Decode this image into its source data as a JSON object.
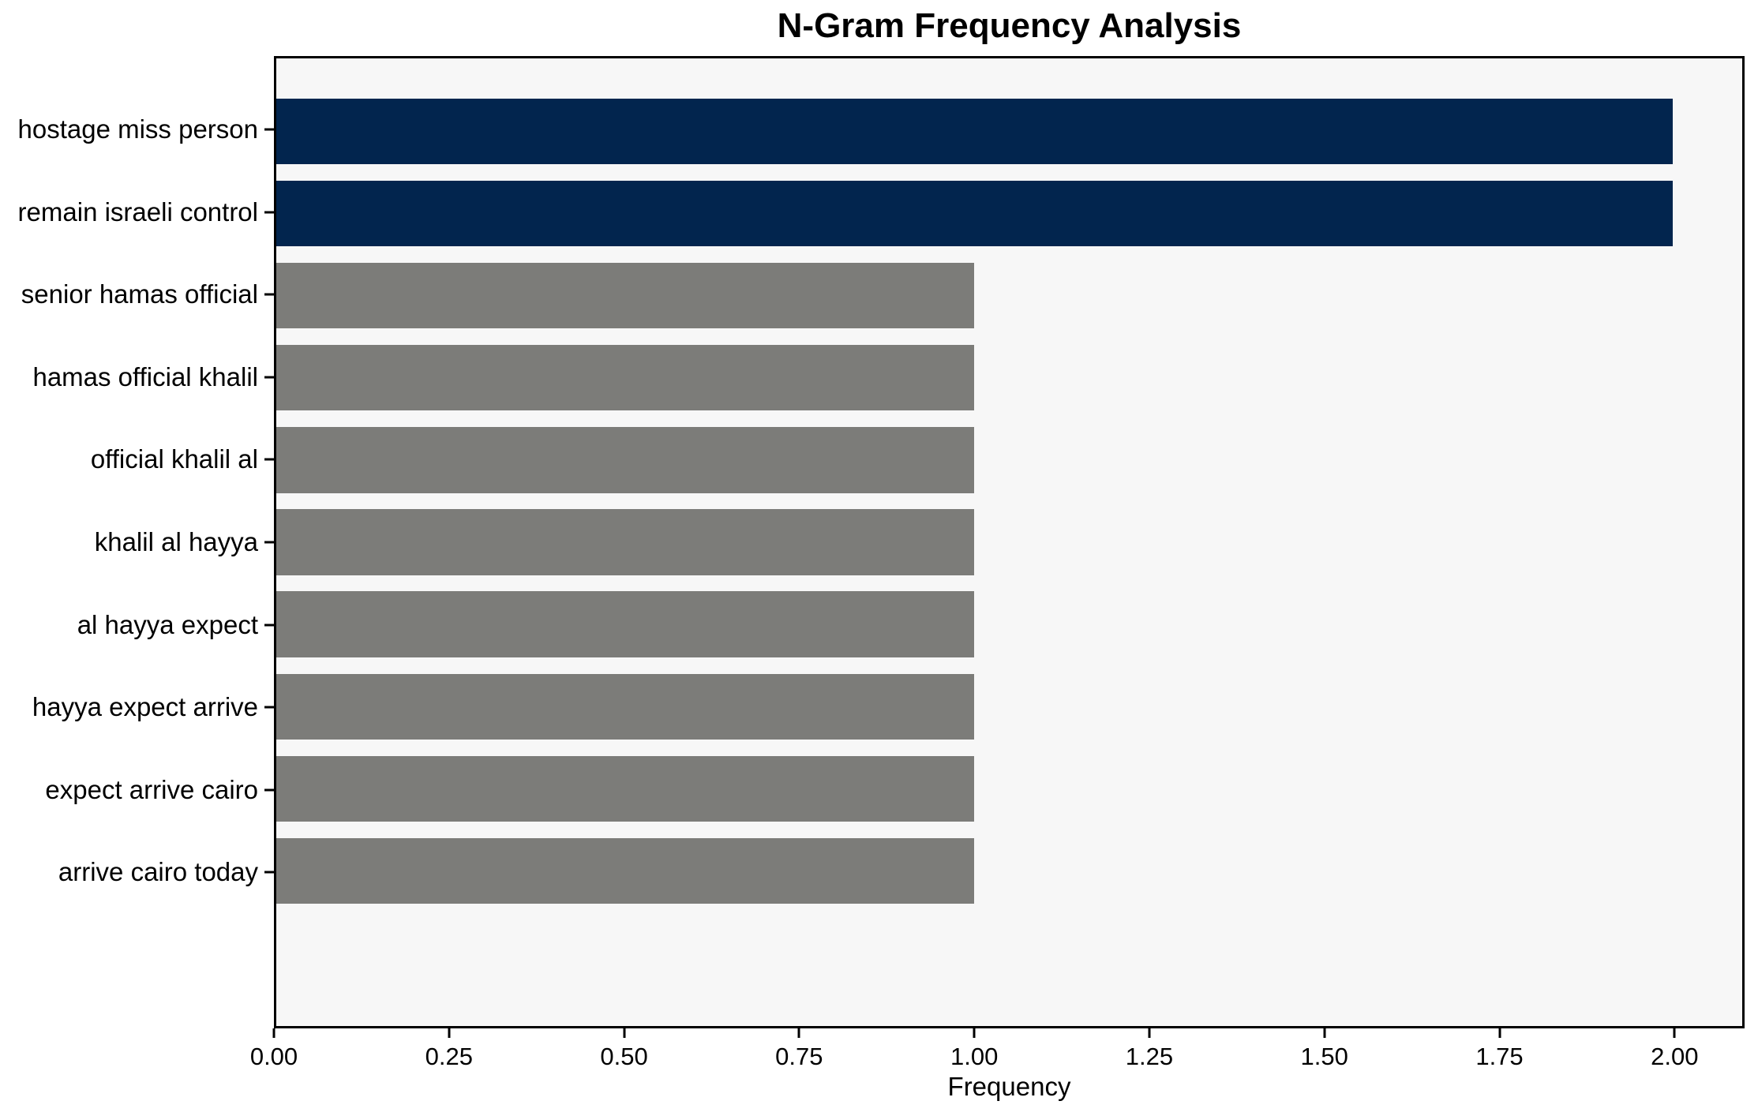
{
  "chart_data": {
    "type": "bar",
    "orientation": "horizontal",
    "title": "N-Gram Frequency Analysis",
    "xlabel": "Frequency",
    "categories": [
      "hostage miss person",
      "remain israeli control",
      "senior hamas official",
      "hamas official khalil",
      "official khalil al",
      "khalil al hayya",
      "al hayya expect",
      "hayya expect arrive",
      "expect arrive cairo",
      "arrive cairo today"
    ],
    "values": [
      2,
      2,
      1,
      1,
      1,
      1,
      1,
      1,
      1,
      1
    ],
    "bar_colors": [
      "#02254e",
      "#02254e",
      "#7c7c79",
      "#7c7c79",
      "#7c7c79",
      "#7c7c79",
      "#7c7c79",
      "#7c7c79",
      "#7c7c79",
      "#7c7c79"
    ],
    "highlight_color": "#02254e",
    "base_color": "#7c7c79",
    "xlim": [
      0,
      2.1
    ],
    "xticks": [
      0,
      0.25,
      0.5,
      0.75,
      1.0,
      1.25,
      1.5,
      1.75,
      2.0
    ],
    "xtick_labels": [
      "0.00",
      "0.25",
      "0.50",
      "0.75",
      "1.00",
      "1.25",
      "1.50",
      "1.75",
      "2.00"
    ],
    "grid": false,
    "legend": false,
    "plot_background": "#f7f7f7",
    "figure_background": "#ffffff",
    "spine_color": "#000000"
  }
}
